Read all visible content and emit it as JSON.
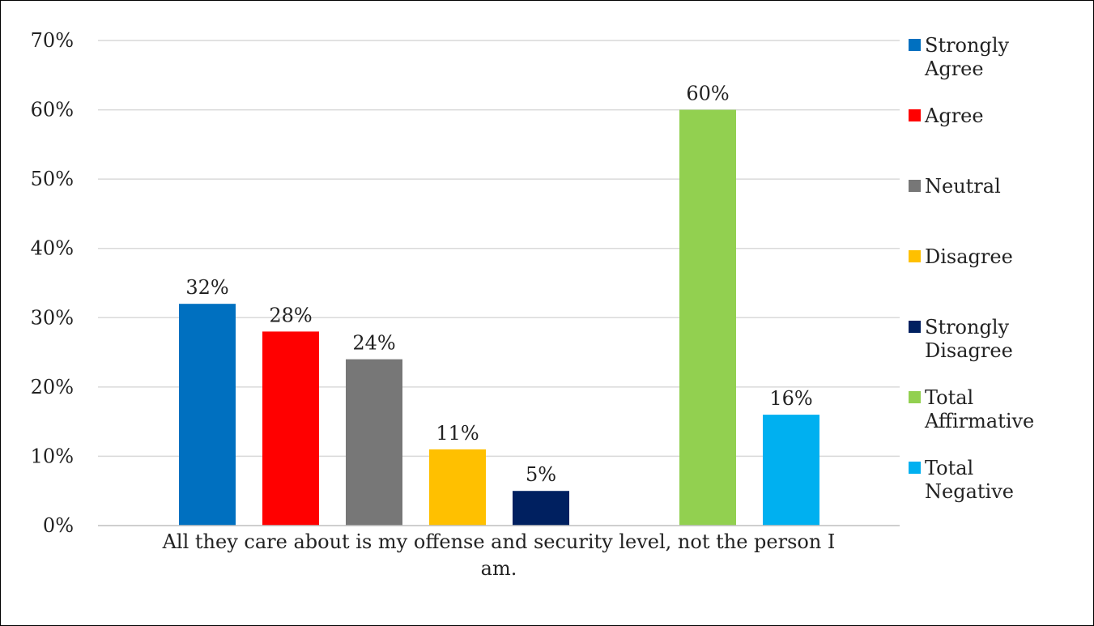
{
  "chart_data": {
    "type": "bar",
    "categories": [
      "All they care about is my offense and security level, not the person I am."
    ],
    "category_label_lines": [
      "All they care about is my offense and security level, not the person I",
      "am."
    ],
    "series": [
      {
        "name": "Strongly Agree",
        "legend_lines": [
          "Strongly",
          "Agree"
        ],
        "values": [
          32
        ],
        "label": "32%",
        "color": "#0070C0"
      },
      {
        "name": "Agree",
        "legend_lines": [
          "Agree"
        ],
        "values": [
          28
        ],
        "label": "28%",
        "color": "#FF0000"
      },
      {
        "name": "Neutral",
        "legend_lines": [
          "Neutral"
        ],
        "values": [
          24
        ],
        "label": "24%",
        "color": "#777777"
      },
      {
        "name": "Disagree",
        "legend_lines": [
          "Disagree"
        ],
        "values": [
          11
        ],
        "label": "11%",
        "color": "#FFC000"
      },
      {
        "name": "Strongly Disagree",
        "legend_lines": [
          "Strongly",
          "Disagree"
        ],
        "values": [
          5
        ],
        "label": "5%",
        "color": "#002060"
      },
      {
        "name": "Total Affirmative",
        "legend_lines": [
          "Total",
          "Affirmative"
        ],
        "values": [
          60
        ],
        "label": "60%",
        "color": "#92D050"
      },
      {
        "name": "Total Negative",
        "legend_lines": [
          "Total",
          "Negative"
        ],
        "values": [
          16
        ],
        "label": "16%",
        "color": "#00B0F0"
      }
    ],
    "gap_before_series": [
      5
    ],
    "y_ticks": [
      0,
      10,
      20,
      30,
      40,
      50,
      60,
      70
    ],
    "y_tick_labels": [
      "0%",
      "10%",
      "20%",
      "30%",
      "40%",
      "50%",
      "60%",
      "70%"
    ],
    "ylim": [
      0,
      70
    ],
    "grid": true,
    "legend_placement": "right",
    "gridline_color": "#D9D9D9",
    "axis_color": "#BFBFBF"
  }
}
